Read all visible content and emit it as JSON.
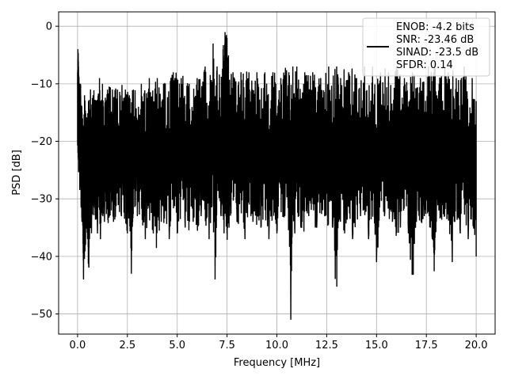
{
  "chart_data": {
    "type": "line",
    "xlabel": "Frequency [MHz]",
    "ylabel": "PSD [dB]",
    "xlim": [
      -0.95,
      20.95
    ],
    "ylim": [
      -53.5,
      2.5
    ],
    "x_ticks": [
      0.0,
      2.5,
      5.0,
      7.5,
      10.0,
      12.5,
      15.0,
      17.5,
      20.0
    ],
    "x_tick_labels": [
      "0.0",
      "2.5",
      "5.0",
      "7.5",
      "10.0",
      "12.5",
      "15.0",
      "17.5",
      "20.0"
    ],
    "y_ticks": [
      0,
      -10,
      -20,
      -30,
      -40,
      -50
    ],
    "y_tick_labels": [
      "0",
      "−10",
      "−20",
      "−30",
      "−40",
      "−50"
    ],
    "grid": true,
    "legend": {
      "placement": "top-right",
      "line_color": "#000000",
      "lines": [
        "ENOB: -4.2 bits",
        "SNR: -23.46 dB",
        "SINAD: -23.5 dB",
        "SFDR: 0.14"
      ]
    },
    "series": [
      {
        "color": "#000000",
        "x": [
          0.0,
          0.02,
          0.05,
          0.08,
          0.12,
          0.15,
          0.18,
          0.22,
          0.25,
          0.3,
          0.35,
          0.4,
          0.45,
          0.5,
          0.55,
          0.6,
          0.65,
          0.7,
          0.78,
          0.85,
          0.9,
          1.0,
          1.1,
          1.15,
          1.25,
          1.35,
          1.5,
          1.6,
          1.75,
          1.9,
          2.0,
          2.2,
          2.4,
          2.5,
          2.6,
          2.7,
          2.8,
          3.0,
          3.2,
          3.4,
          3.6,
          3.8,
          4.0,
          4.2,
          4.4,
          4.6,
          4.8,
          5.0,
          5.2,
          5.4,
          5.6,
          5.8,
          6.0,
          6.2,
          6.4,
          6.6,
          6.8,
          6.9,
          7.0,
          7.2,
          7.3,
          7.35,
          7.4,
          7.45,
          7.5,
          7.6,
          7.8,
          8.0,
          8.2,
          8.4,
          8.6,
          8.8,
          9.0,
          9.2,
          9.4,
          9.6,
          9.8,
          10.0,
          10.2,
          10.4,
          10.6,
          10.7,
          10.8,
          10.9,
          11.0,
          11.2,
          11.4,
          11.6,
          11.8,
          12.0,
          12.2,
          12.4,
          12.6,
          12.8,
          13.0,
          13.1,
          13.2,
          13.4,
          13.6,
          13.8,
          14.0,
          14.2,
          14.4,
          14.6,
          14.8,
          15.0,
          15.2,
          15.4,
          15.6,
          15.8,
          16.0,
          16.2,
          16.4,
          16.6,
          16.8,
          17.0,
          17.2,
          17.4,
          17.6,
          17.8,
          17.9,
          18.0,
          18.2,
          18.4,
          18.6,
          18.8,
          19.0,
          19.2,
          19.4,
          19.6,
          19.8,
          20.0
        ],
        "y_upper": [
          -8,
          -2,
          -7,
          -9,
          -10,
          -9,
          -14,
          -13,
          -16,
          -13,
          -12,
          -14,
          -16,
          -13,
          -13,
          -12,
          -11,
          -13,
          -12,
          -10,
          -13,
          -12,
          -9,
          -13,
          -10,
          -12,
          -11,
          -10,
          -11,
          -9,
          -11,
          -10,
          -11,
          -10,
          -12,
          -10,
          -11,
          -9,
          -10,
          -11,
          -9,
          -10,
          -9,
          -8,
          -10,
          -9,
          -8,
          -5,
          -9,
          -8,
          -10,
          -8,
          -9,
          -8,
          -7,
          -8,
          -3,
          -8,
          -7,
          -9,
          -4,
          0,
          -1,
          0,
          -2,
          -6,
          -8,
          -9,
          -8,
          -7,
          -8,
          -9,
          -8,
          -7,
          -8,
          -9,
          -8,
          -7,
          -9,
          -7,
          -8,
          -9,
          -7,
          -8,
          -7,
          -9,
          -8,
          -7,
          -8,
          -7,
          -9,
          -8,
          -7,
          -8,
          -7,
          -8,
          -9,
          -7,
          -8,
          -7,
          -9,
          -8,
          -7,
          -8,
          -7,
          -9,
          -8,
          -7,
          -8,
          -9,
          -7,
          -8,
          -9,
          -7,
          -8,
          -7,
          -9,
          -8,
          -7,
          -8,
          -6,
          -8,
          -9,
          -7,
          -8,
          -7,
          -9,
          -8,
          -7,
          -8,
          -9,
          -13
        ],
        "y_lower": [
          -21,
          -22,
          -26,
          -25,
          -30,
          -28,
          -33,
          -34,
          -33,
          -44,
          -41,
          -38,
          -35,
          -37,
          -46,
          -37,
          -34,
          -36,
          -34,
          -31,
          -34,
          -36,
          -33,
          -37,
          -35,
          -34,
          -36,
          -33,
          -37,
          -33,
          -34,
          -33,
          -35,
          -36,
          -34,
          -43,
          -35,
          -33,
          -35,
          -37,
          -34,
          -36,
          -40,
          -34,
          -35,
          -37,
          -34,
          -36,
          -33,
          -35,
          -37,
          -34,
          -36,
          -33,
          -35,
          -37,
          -34,
          -44,
          -35,
          -33,
          -35,
          -36,
          -34,
          -33,
          -43,
          -35,
          -33,
          -34,
          -36,
          -37,
          -33,
          -34,
          -36,
          -35,
          -33,
          -37,
          -34,
          -36,
          -35,
          -33,
          -37,
          -51,
          -34,
          -36,
          -33,
          -35,
          -36,
          -33,
          -37,
          -35,
          -34,
          -33,
          -36,
          -35,
          -49,
          -34,
          -35,
          -36,
          -33,
          -37,
          -34,
          -33,
          -36,
          -37,
          -34,
          -41,
          -35,
          -33,
          -36,
          -34,
          -37,
          -35,
          -33,
          -36,
          -46,
          -34,
          -36,
          -33,
          -35,
          -37,
          -48,
          -34,
          -36,
          -33,
          -35,
          -41,
          -34,
          -36,
          -33,
          -37,
          -35,
          -40
        ]
      }
    ]
  }
}
